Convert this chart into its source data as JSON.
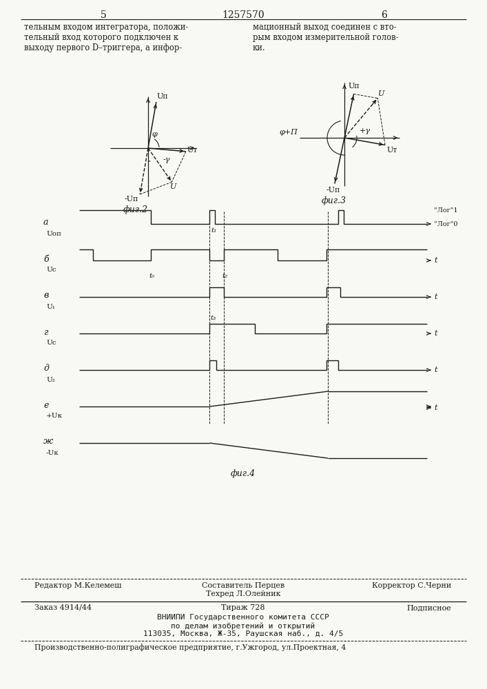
{
  "page_number_left": "5",
  "page_number_center": "1257570",
  "page_number_right": "6",
  "header_left": "тельным входом интегратора, положи-\nтельный вход которого подключен к\nвыходу первого D–триггера, а инфор-",
  "header_right": "мационный выход соединен с вто-\nрым входом измерительной голов-\nки.",
  "fig2_label": "фиг.2",
  "fig3_label": "фиг.3",
  "fig4_label": "фиг.4",
  "footer_top_left": "Редактор М.Келемеш",
  "footer_top_center_line1": "Составитель Перцев",
  "footer_top_center_line2": "Техред Л.Олейник",
  "footer_top_right": "Корректор С.Черни",
  "footer_mid1_left": "Заказ 4914/44",
  "footer_mid1_center": "Тираж 728",
  "footer_mid1_right": "Подписное",
  "footer_mid2": "ВНИИПИ Государственного комитета СССР",
  "footer_mid3": "по делам изобретений и открытий",
  "footer_mid4": "113035, Москва, Ж-35, Раушская наб., д. 4/5",
  "footer_bottom": "Производственно-полиграфическое предприятие, г.Ужгород, ул.Проектная, 4",
  "bg_color": "#f8f8f4",
  "line_color": "#1a1a1a",
  "text_color": "#1a1a1a"
}
